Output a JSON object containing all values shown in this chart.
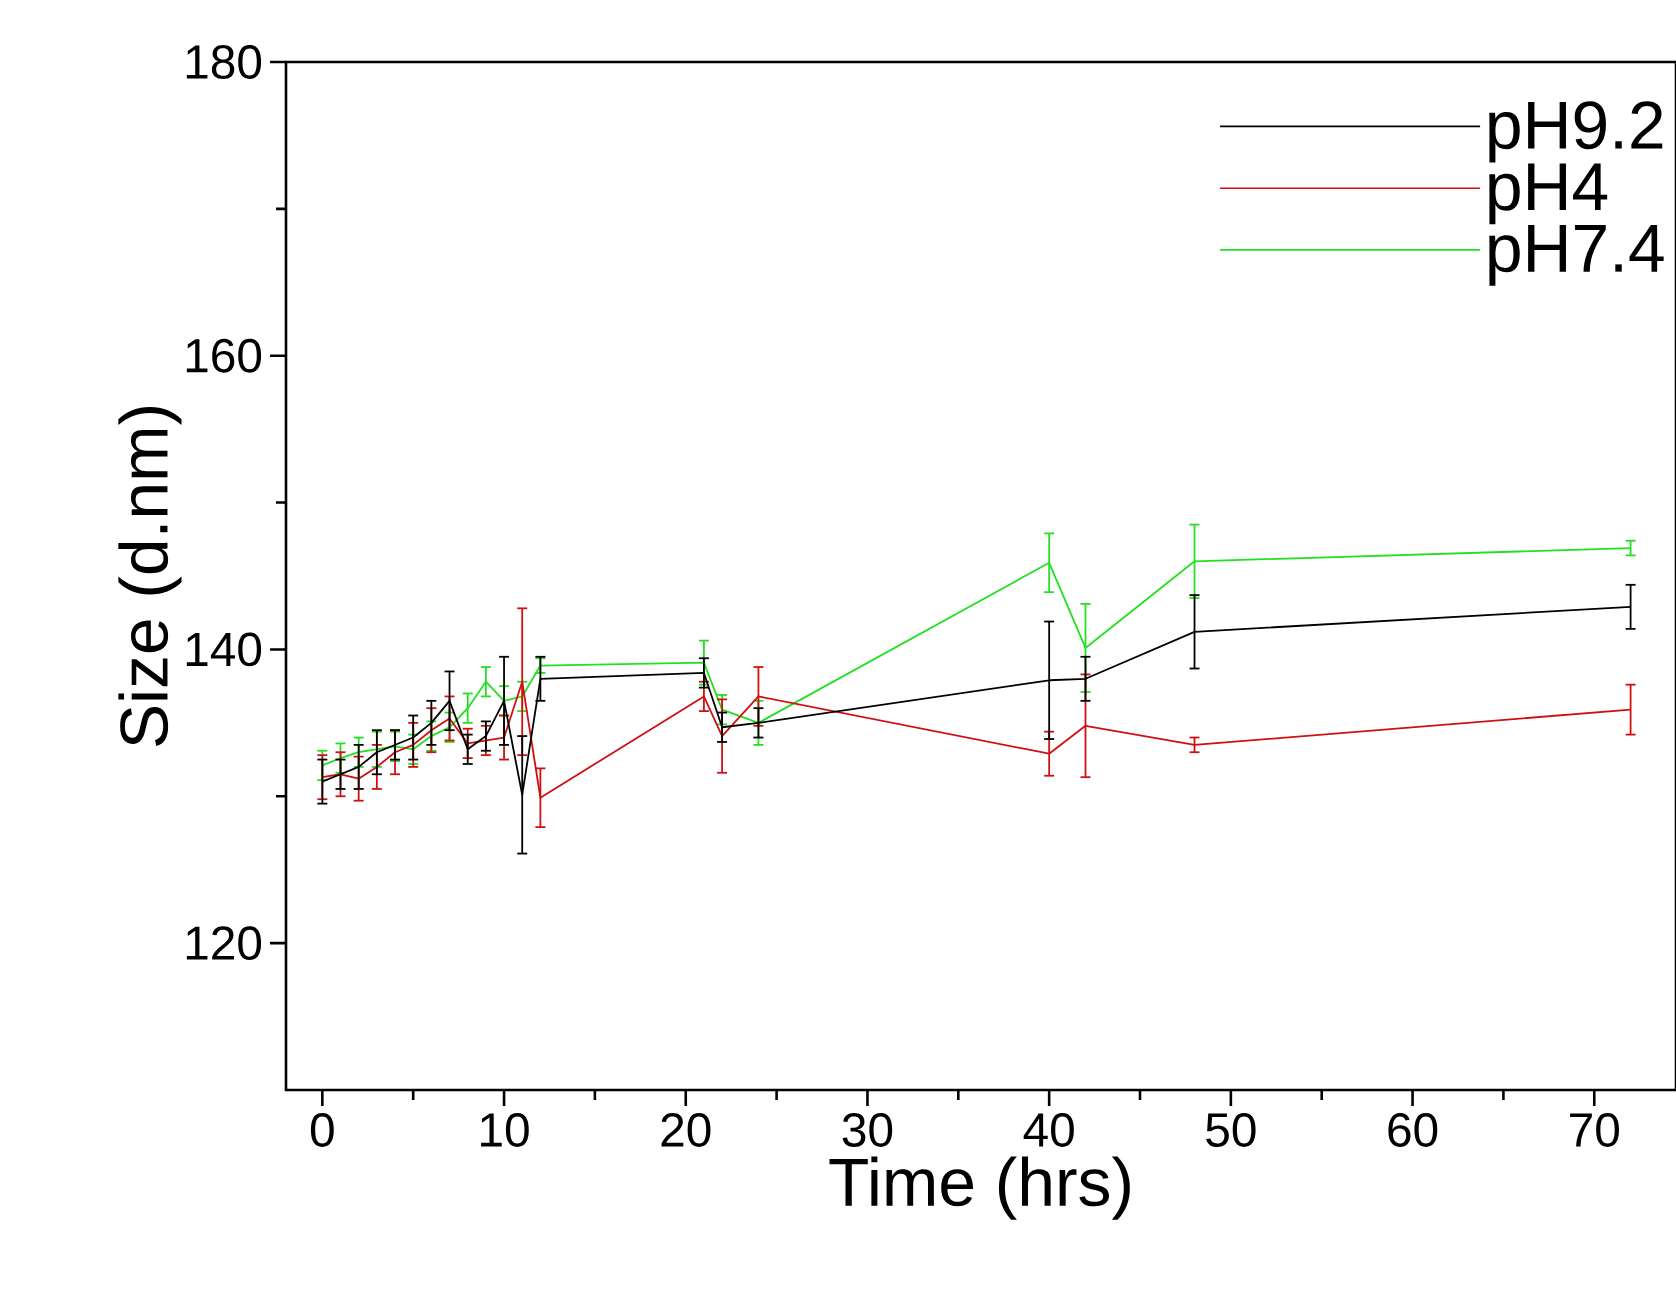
{
  "chart_data": {
    "type": "line",
    "xlabel": "Time (hrs)",
    "ylabel": "Size (d.nm)",
    "x": [
      0,
      1,
      2,
      3,
      4,
      5,
      6,
      7,
      8,
      9,
      10,
      11,
      12,
      21,
      22,
      24,
      40,
      42,
      48,
      72
    ],
    "xlim": [
      -2,
      74.5
    ],
    "ylim": [
      110,
      180
    ],
    "xticks": [
      0,
      10,
      20,
      30,
      40,
      50,
      60,
      70
    ],
    "yticks": [
      120,
      140,
      160,
      180
    ],
    "grid": false,
    "legend": "top right",
    "series": [
      {
        "name": "pH9.2",
        "color": "#000000",
        "values": [
          131,
          131.5,
          132,
          133,
          133.5,
          134,
          135,
          136.5,
          133.2,
          134.1,
          136.5,
          130.1,
          138,
          138.4,
          134.7,
          135,
          137.9,
          138,
          141.2,
          142.9
        ],
        "errors": [
          1.5,
          1,
          1.5,
          1.5,
          1,
          1.5,
          1.5,
          2,
          1,
          1,
          3,
          4,
          1.5,
          1,
          1,
          1,
          4,
          1.5,
          2.5,
          1.5
        ]
      },
      {
        "name": "pH4",
        "color": "#d01010",
        "values": [
          131.3,
          131.5,
          131.2,
          132,
          133,
          133.5,
          134.5,
          135.3,
          133.6,
          133.8,
          134,
          137.8,
          129.9,
          136.8,
          134.1,
          136.8,
          132.9,
          134.8,
          133.5,
          135.9
        ],
        "errors": [
          1.5,
          1.5,
          1.5,
          1.5,
          1.5,
          1.5,
          1.5,
          1.5,
          1,
          1,
          1.5,
          5,
          2,
          1,
          2.5,
          2,
          1.5,
          3.5,
          0.5,
          1.7
        ]
      },
      {
        "name": "pH7.4",
        "color": "#22e022",
        "values": [
          132.1,
          132.6,
          133,
          133.2,
          133.4,
          133.2,
          134.1,
          134.7,
          136,
          137.8,
          136.5,
          136.8,
          138.9,
          139.1,
          135.9,
          135,
          145.9,
          140.1,
          146,
          146.9
        ],
        "errors": [
          1,
          1,
          1,
          1.2,
          1,
          1,
          1,
          1,
          1,
          1,
          1,
          1,
          0.5,
          1.5,
          1,
          1.5,
          2,
          3,
          2.5,
          0.5
        ]
      }
    ]
  }
}
